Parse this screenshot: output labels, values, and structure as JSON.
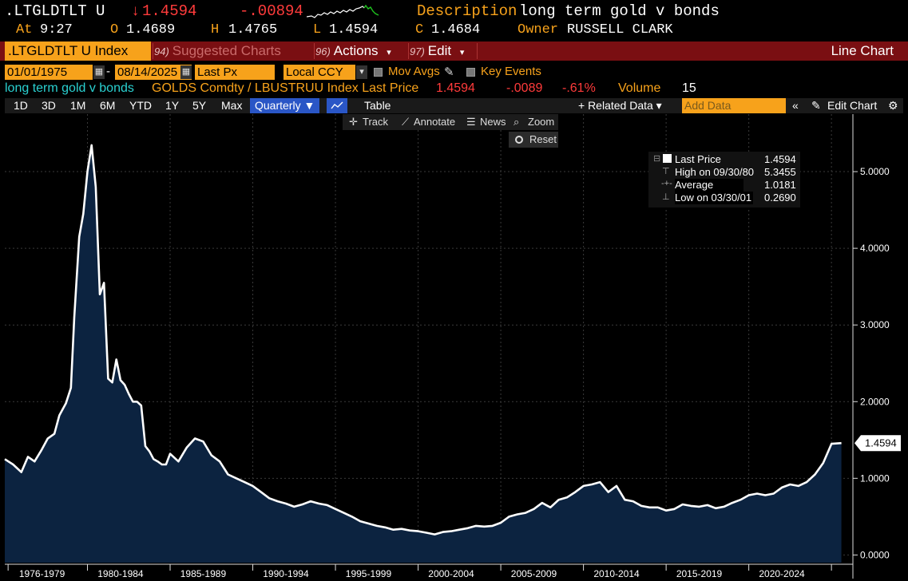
{
  "quote": {
    "ticker": ".LTGLDTLT U",
    "arrow": "↓",
    "last": "1.4594",
    "change": "-.00894",
    "description_label": "Description",
    "description": "long term gold v bonds",
    "at_label": "At",
    "time": "9:27",
    "open_label": "O",
    "open": "1.4689",
    "high_label": "H",
    "high": "1.4765",
    "low_label": "L",
    "low": "1.4594",
    "close_label": "C",
    "close": "1.4684",
    "owner_label": "Owner",
    "owner": "RUSSELL CLARK"
  },
  "cmdbar": {
    "ticker_box": ".LTGLDTLT U Index",
    "suggested_num": "94)",
    "suggested": "Suggested Charts",
    "actions_num": "96)",
    "actions": "Actions",
    "edit_num": "97)",
    "edit": "Edit",
    "title": "Line Chart"
  },
  "range": {
    "start": "01/01/1975",
    "end": "08/14/2025",
    "field": "Last Px",
    "currency": "Local CCY",
    "mov_avgs": "Mov Avgs",
    "key_events": "Key Events"
  },
  "security": {
    "name": "long term gold v bonds",
    "formula": "GOLDS Comdty / LBUSTRUU Index Last Price",
    "price": "1.4594",
    "change": "-.0089",
    "pct": "-.61%",
    "volume_label": "Volume",
    "volume": "15"
  },
  "toolbar": {
    "periods": [
      "1D",
      "3D",
      "1M",
      "6M",
      "YTD",
      "1Y",
      "5Y",
      "Max"
    ],
    "frequency": "Quarterly ▼",
    "table": "Table",
    "related": "+ Related Data ▾",
    "add_data_placeholder": "Add Data",
    "edit_chart": "Edit Chart"
  },
  "tools": {
    "track": "Track",
    "annotate": "Annotate",
    "news": "News",
    "zoom": "Zoom",
    "reset": "Reset"
  },
  "legend": {
    "last_label": "Last Price",
    "last_value": "1.4594",
    "high_label": "High on 09/30/80",
    "high_value": "5.3455",
    "avg_label": "Average",
    "avg_value": "1.0181",
    "low_label": "Low on 03/30/01",
    "low_value": "0.2690"
  },
  "colors": {
    "accent_orange": "#f7a21b",
    "cmd_red": "#7a0f12",
    "area_fill": "#0c2340",
    "line": "#ffffff",
    "toggle_blue": "#2a56c6"
  },
  "chart_data": {
    "type": "area",
    "title": "",
    "xlabel": "",
    "ylabel": "",
    "ylim": [
      -0.1,
      5.75
    ],
    "xlim": [
      1975.0,
      2026.2
    ],
    "yticks": [
      "0.0000",
      "1.0000",
      "2.0000",
      "3.0000",
      "4.0000",
      "5.0000"
    ],
    "ytick_values": [
      0,
      1,
      2,
      3,
      4,
      5
    ],
    "xtick_labels": [
      "1976-1979",
      "1980-1984",
      "1985-1989",
      "1990-1994",
      "1995-1999",
      "2000-2004",
      "2005-2009",
      "2010-2014",
      "2015-2019",
      "2020-2024"
    ],
    "xtick_centers": [
      1977.25,
      1982.0,
      1987.0,
      1992.0,
      1997.0,
      2002.0,
      2007.0,
      2012.0,
      2017.0,
      2022.0
    ],
    "last_label": "1.4594",
    "x": [
      1975.0,
      1975.5,
      1976.0,
      1976.4,
      1976.8,
      1977.2,
      1977.6,
      1978.0,
      1978.3,
      1978.7,
      1979.0,
      1979.2,
      1979.5,
      1979.75,
      1980.0,
      1980.25,
      1980.5,
      1980.75,
      1981.0,
      1981.25,
      1981.5,
      1981.75,
      1982.0,
      1982.25,
      1982.5,
      1982.75,
      1983.0,
      1983.25,
      1983.5,
      1983.75,
      1984.0,
      1984.25,
      1984.5,
      1984.75,
      1985.0,
      1985.5,
      1986.0,
      1986.5,
      1987.0,
      1987.5,
      1988.0,
      1988.5,
      1989.0,
      1989.5,
      1990.0,
      1990.5,
      1991.0,
      1991.5,
      1992.0,
      1992.5,
      1993.0,
      1993.5,
      1994.0,
      1994.5,
      1995.0,
      1995.5,
      1996.0,
      1996.5,
      1997.0,
      1997.5,
      1998.0,
      1998.5,
      1999.0,
      1999.5,
      2000.0,
      2000.5,
      2001.0,
      2001.5,
      2002.0,
      2002.5,
      2003.0,
      2003.5,
      2004.0,
      2004.5,
      2005.0,
      2005.5,
      2006.0,
      2006.5,
      2007.0,
      2007.5,
      2008.0,
      2008.5,
      2009.0,
      2009.5,
      2010.0,
      2010.5,
      2011.0,
      2011.5,
      2012.0,
      2012.5,
      2013.0,
      2013.5,
      2014.0,
      2014.5,
      2015.0,
      2015.5,
      2016.0,
      2016.5,
      2017.0,
      2017.5,
      2018.0,
      2018.5,
      2019.0,
      2019.5,
      2020.0,
      2020.5,
      2021.0,
      2021.5,
      2022.0,
      2022.5,
      2023.0,
      2023.5,
      2024.0,
      2024.5,
      2025.0,
      2025.6
    ],
    "values": [
      1.25,
      1.18,
      1.08,
      1.28,
      1.22,
      1.36,
      1.52,
      1.58,
      1.82,
      1.98,
      2.18,
      3.1,
      4.15,
      4.45,
      5.0,
      5.3455,
      4.8,
      3.4,
      3.55,
      2.3,
      2.25,
      2.55,
      2.28,
      2.22,
      2.1,
      2.0,
      2.0,
      1.95,
      1.42,
      1.35,
      1.25,
      1.22,
      1.18,
      1.18,
      1.32,
      1.22,
      1.4,
      1.52,
      1.48,
      1.3,
      1.22,
      1.05,
      1.0,
      0.95,
      0.9,
      0.82,
      0.74,
      0.7,
      0.67,
      0.63,
      0.66,
      0.7,
      0.67,
      0.65,
      0.6,
      0.55,
      0.5,
      0.44,
      0.41,
      0.38,
      0.36,
      0.33,
      0.34,
      0.32,
      0.31,
      0.29,
      0.269,
      0.3,
      0.31,
      0.33,
      0.35,
      0.38,
      0.37,
      0.38,
      0.42,
      0.5,
      0.53,
      0.55,
      0.6,
      0.68,
      0.62,
      0.72,
      0.75,
      0.82,
      0.9,
      0.92,
      0.95,
      0.82,
      0.9,
      0.72,
      0.7,
      0.64,
      0.62,
      0.62,
      0.58,
      0.6,
      0.66,
      0.64,
      0.63,
      0.65,
      0.61,
      0.63,
      0.68,
      0.72,
      0.78,
      0.8,
      0.78,
      0.8,
      0.88,
      0.92,
      0.9,
      0.95,
      1.05,
      1.2,
      1.45,
      1.4594
    ]
  }
}
